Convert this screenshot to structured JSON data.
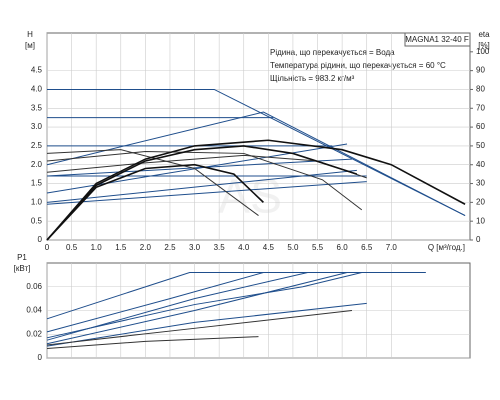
{
  "watermark": "AS",
  "chart_data": [
    {
      "type": "line",
      "title": "MAGNA1 32-40 F",
      "annotations": [
        "Рідина, що перекачується = Вода",
        "Температура рідини, що перекачується = 60 °C",
        "Щільність = 983.2 кг/м³"
      ],
      "ylabel": "H",
      "ylabel_unit": "[м]",
      "y2label": "eta",
      "y2label_unit": "[%]",
      "xlabel": "Q [м³/год.]",
      "xlim": [
        0,
        8.6
      ],
      "ylim": [
        0,
        5.5
      ],
      "y2lim": [
        0,
        110
      ],
      "grid": true,
      "xticks": [
        0,
        0.5,
        {
          "value": 1,
          "label": "1.0"
        },
        1.5,
        {
          "value": 2,
          "label": "2.0"
        },
        2.5,
        {
          "value": 3,
          "label": "3.0"
        },
        3.5,
        {
          "value": 4,
          "label": "4.0"
        },
        4.5,
        {
          "value": 5,
          "label": "5.0"
        },
        5.5,
        {
          "value": 6,
          "label": "6.0"
        },
        6.5,
        {
          "value": 7,
          "label": "7.0"
        }
      ],
      "yticks": [
        0,
        0.5,
        {
          "value": 1,
          "label": "1.0"
        },
        1.5,
        {
          "value": 2,
          "label": "2.0"
        },
        2.5,
        {
          "value": 3,
          "label": "3.0"
        },
        3.5,
        {
          "value": 4,
          "label": "4.0"
        },
        4.5
      ],
      "y2ticks": [
        0,
        10,
        20,
        30,
        40,
        50,
        60,
        70,
        80,
        90,
        100
      ],
      "series": [
        {
          "color": "#1f4e8c",
          "x": [
            0,
            3.4,
            8.5
          ],
          "values": [
            4.0,
            4.0,
            0.65
          ]
        },
        {
          "color": "#1f4e8c",
          "x": [
            0,
            4.6
          ],
          "values": [
            3.25,
            3.25
          ]
        },
        {
          "color": "#1f4e8c",
          "x": [
            0,
            5.8
          ],
          "values": [
            2.5,
            2.5
          ]
        },
        {
          "color": "#1f4e8c",
          "x": [
            0,
            6.5
          ],
          "values": [
            1.7,
            1.7
          ]
        },
        {
          "color": "#1f4e8c",
          "x": [
            0,
            4.4,
            8.5
          ],
          "values": [
            2.0,
            3.4,
            0.65
          ]
        },
        {
          "color": "#1f4e8c",
          "x": [
            0,
            6.1
          ],
          "values": [
            1.25,
            2.55
          ]
        },
        {
          "color": "#1f4e8c",
          "x": [
            0,
            6.2
          ],
          "values": [
            1.7,
            2.15
          ]
        },
        {
          "color": "#1f4e8c",
          "x": [
            0,
            6.3
          ],
          "values": [
            1.0,
            1.85
          ]
        },
        {
          "color": "#1f4e8c",
          "x": [
            0,
            6.5
          ],
          "values": [
            0.95,
            1.55
          ]
        },
        {
          "color": "#333333",
          "x": [
            0,
            1.5,
            3,
            4.3
          ],
          "values": [
            2.3,
            2.4,
            1.9,
            0.65
          ]
        },
        {
          "color": "#333333",
          "x": [
            0,
            2,
            4,
            5.6,
            6.4
          ],
          "values": [
            2.1,
            2.35,
            2.3,
            1.6,
            0.8
          ]
        },
        {
          "color": "#333333",
          "x": [
            0,
            2,
            4,
            5.5,
            6.5
          ],
          "values": [
            1.8,
            2.05,
            2.25,
            2.1,
            1.65
          ]
        },
        {
          "color": "#111111",
          "axis": "y2",
          "x": [
            0,
            1,
            2,
            3,
            4.5,
            6,
            7,
            8.5
          ],
          "values": [
            0,
            30,
            43,
            50,
            53,
            48,
            40,
            19
          ]
        },
        {
          "color": "#111111",
          "axis": "y2",
          "x": [
            0,
            1,
            2,
            3,
            4,
            5,
            6.3
          ],
          "values": [
            0,
            29,
            42,
            48,
            50,
            46,
            35
          ]
        },
        {
          "color": "#111111",
          "axis": "y2",
          "x": [
            0,
            1,
            2,
            3,
            3.8,
            4.4
          ],
          "values": [
            0,
            28,
            38,
            40,
            35,
            20
          ]
        }
      ]
    },
    {
      "type": "line",
      "ylabel": "P1",
      "ylabel_unit": "[кВт]",
      "xlim": [
        0,
        8.6
      ],
      "ylim": [
        0,
        0.08
      ],
      "grid": true,
      "xticks": [
        0,
        0.5,
        1,
        1.5,
        2,
        2.5,
        3,
        3.5,
        4,
        4.5,
        5,
        5.5,
        6,
        6.5,
        7
      ],
      "yticks": [
        0,
        0.02,
        0.04,
        0.06
      ],
      "series": [
        {
          "color": "#1f4e8c",
          "x": [
            0,
            2.9,
            7.7
          ],
          "values": [
            0.033,
            0.072,
            0.072
          ]
        },
        {
          "color": "#1f4e8c",
          "x": [
            0,
            2.5,
            4.4,
            7.7
          ],
          "values": [
            0.022,
            0.05,
            0.072,
            0.072
          ]
        },
        {
          "color": "#1f4e8c",
          "x": [
            0,
            3,
            5.3
          ],
          "values": [
            0.015,
            0.05,
            0.072
          ]
        },
        {
          "color": "#1f4e8c",
          "x": [
            0,
            3,
            6.1
          ],
          "values": [
            0.012,
            0.04,
            0.072
          ]
        },
        {
          "color": "#1f4e8c",
          "x": [
            0,
            3,
            6.5
          ],
          "values": [
            0.01,
            0.03,
            0.046
          ]
        },
        {
          "color": "#1f4e8c",
          "x": [
            0,
            3,
            5.2,
            6.4
          ],
          "values": [
            0.017,
            0.045,
            0.06,
            0.072
          ]
        },
        {
          "color": "#333333",
          "x": [
            0,
            2,
            4.3
          ],
          "values": [
            0.008,
            0.014,
            0.018
          ]
        },
        {
          "color": "#333333",
          "x": [
            0,
            3,
            6.2
          ],
          "values": [
            0.011,
            0.025,
            0.04
          ]
        }
      ]
    }
  ]
}
